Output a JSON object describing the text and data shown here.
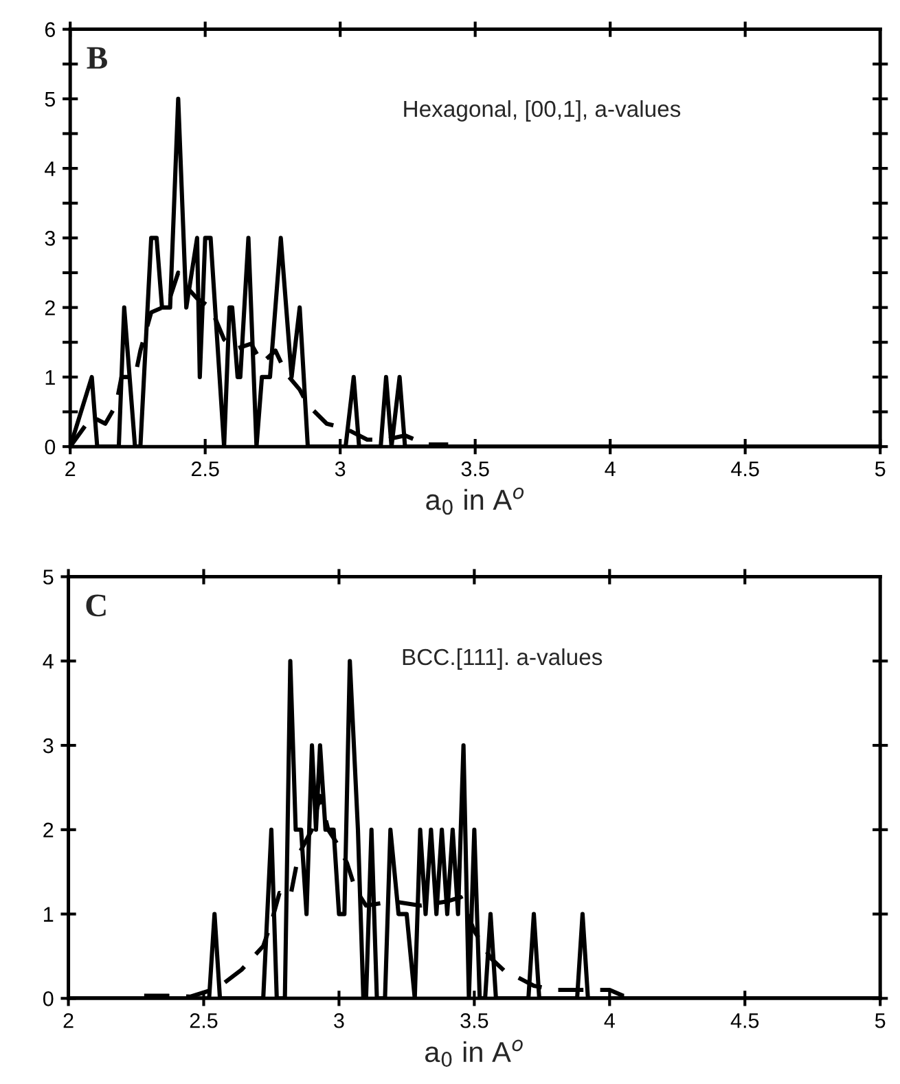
{
  "chart_data": [
    {
      "type": "line",
      "annotations": [
        "B",
        "Hexagonal, [00,1], a-values"
      ],
      "xlabel": "a$_{0}$ in A$^{o}$",
      "xlim": [
        2,
        5
      ],
      "xticks": [
        2,
        2.5,
        3,
        3.5,
        4,
        4.5,
        5
      ],
      "ylim": [
        0,
        6
      ],
      "yticks": [
        0,
        {
          "value": 0.5,
          "label": null
        },
        1,
        {
          "value": 1.5,
          "label": null
        },
        2,
        {
          "value": 2.5,
          "label": null
        },
        3,
        {
          "value": 3.5,
          "label": null
        },
        4,
        {
          "value": 4.5,
          "label": null
        },
        5,
        {
          "value": 5.5,
          "label": null
        },
        6
      ],
      "grid": false,
      "legend": false,
      "marker": "none",
      "series": [
        {
          "color": "#000000",
          "line_style": "solid",
          "x": [
            2.0,
            2.08,
            2.1,
            2.18,
            2.2,
            2.24,
            2.26,
            2.3,
            2.32,
            2.34,
            2.37,
            2.4,
            2.43,
            2.47,
            2.48,
            2.5,
            2.52,
            2.57,
            2.59,
            2.6,
            2.62,
            2.63,
            2.66,
            2.69,
            2.71,
            2.74,
            2.78,
            2.82,
            2.85,
            2.88,
            3.02,
            3.05,
            3.07,
            3.15,
            3.17,
            3.19,
            3.22,
            3.24,
            5.0
          ],
          "values": [
            0,
            1,
            0,
            0,
            2,
            0,
            0,
            3,
            3,
            2,
            2,
            5,
            2,
            3,
            1,
            3,
            3,
            0,
            2,
            2,
            1,
            1,
            3,
            0,
            1,
            1,
            3,
            1,
            2,
            0,
            0,
            1,
            0,
            0,
            1,
            0,
            1,
            0,
            0
          ]
        },
        {
          "color": "#000000",
          "line_style": "dashed",
          "x": [
            2.0,
            2.08,
            2.13,
            2.17,
            2.19,
            2.24,
            2.26,
            2.3,
            2.36,
            2.4,
            2.43,
            2.47,
            2.52,
            2.57,
            2.61,
            2.67,
            2.71,
            2.76,
            2.8,
            2.85,
            2.88,
            2.95,
            3.02,
            3.1,
            3.17,
            3.24,
            3.32,
            3.4
          ],
          "values": [
            0,
            0.43,
            0.33,
            0.6,
            1.0,
            1.0,
            1.38,
            1.93,
            2.03,
            2.5,
            2.3,
            2.13,
            2.0,
            1.54,
            1.4,
            1.48,
            1.2,
            1.38,
            1.05,
            0.82,
            0.6,
            0.33,
            0.26,
            0.1,
            0.1,
            0.16,
            0.03,
            0.03
          ]
        }
      ]
    },
    {
      "type": "line",
      "annotations": [
        "C",
        "BCC.[111]. a-values"
      ],
      "xlabel": "a$_{0}$ in A$^{o}$",
      "xlim": [
        2,
        5
      ],
      "xticks": [
        2,
        2.5,
        3,
        3.5,
        4,
        4.5,
        5
      ],
      "ylim": [
        0,
        5
      ],
      "yticks": [
        0,
        1,
        2,
        3,
        4,
        5
      ],
      "grid": false,
      "legend": false,
      "marker": "none",
      "series": [
        {
          "color": "#000000",
          "line_style": "solid",
          "x": [
            2.0,
            2.52,
            2.54,
            2.56,
            2.72,
            2.75,
            2.77,
            2.8,
            2.82,
            2.84,
            2.86,
            2.88,
            2.9,
            2.915,
            2.93,
            2.95,
            2.98,
            3.0,
            3.02,
            3.04,
            3.07,
            3.09,
            3.1,
            3.12,
            3.14,
            3.17,
            3.19,
            3.22,
            3.25,
            3.28,
            3.3,
            3.32,
            3.34,
            3.36,
            3.38,
            3.4,
            3.42,
            3.44,
            3.46,
            3.48,
            3.5,
            3.52,
            3.54,
            3.56,
            3.58,
            3.7,
            3.72,
            3.74,
            3.88,
            3.9,
            3.92,
            5.0
          ],
          "values": [
            0,
            0,
            1,
            0,
            0,
            2,
            0,
            0,
            4,
            2,
            2,
            1,
            3,
            2,
            3,
            2,
            2,
            1,
            1,
            4,
            2,
            0,
            0,
            2,
            0,
            0,
            2,
            1,
            1,
            0,
            2,
            1,
            2,
            1,
            2,
            1,
            2,
            1,
            3,
            0,
            2,
            0,
            0,
            1,
            0,
            0,
            1,
            0,
            0,
            1,
            0,
            0
          ]
        },
        {
          "color": "#000000",
          "line_style": "dashed",
          "x": [
            2.28,
            2.37,
            2.45,
            2.55,
            2.64,
            2.72,
            2.75,
            2.78,
            2.82,
            2.85,
            2.9,
            2.93,
            2.96,
            3.0,
            3.03,
            3.06,
            3.1,
            3.2,
            3.3,
            3.4,
            3.45,
            3.5,
            3.56,
            3.62,
            3.66,
            3.72,
            3.8,
            3.9,
            4.0,
            4.05,
            4.1
          ],
          "values": [
            0.03,
            0.03,
            0.02,
            0.12,
            0.34,
            0.62,
            0.9,
            1.25,
            1.2,
            1.7,
            2.0,
            2.4,
            2.0,
            1.8,
            1.6,
            1.3,
            1.1,
            1.15,
            1.1,
            1.15,
            1.2,
            0.8,
            0.48,
            0.3,
            0.25,
            0.15,
            0.1,
            0.1,
            0.1,
            0.03,
            0.03
          ]
        }
      ]
    }
  ]
}
